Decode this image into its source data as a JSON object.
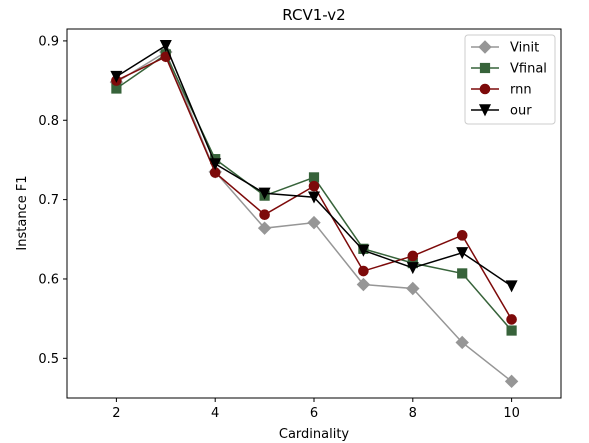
{
  "chart_data": {
    "type": "line",
    "title": "RCV1-v2",
    "xlabel": "Cardinality",
    "ylabel": "Instance F1",
    "xlim": [
      1,
      11
    ],
    "ylim": [
      0.45,
      0.915
    ],
    "xticks": [
      2,
      4,
      6,
      8,
      10
    ],
    "yticks": [
      0.5,
      0.6,
      0.7,
      0.8,
      0.9
    ],
    "x": [
      2,
      3,
      4,
      5,
      6,
      7,
      8,
      9,
      10
    ],
    "grid": false,
    "legend_position": "top-right",
    "series": [
      {
        "name": "Vinit",
        "color": "#969696",
        "marker": "diamond",
        "values": [
          0.848,
          0.886,
          0.735,
          0.664,
          0.671,
          0.593,
          0.588,
          0.52,
          0.471
        ]
      },
      {
        "name": "Vfinal",
        "color": "#37633a",
        "marker": "square",
        "values": [
          0.84,
          0.883,
          0.751,
          0.705,
          0.728,
          0.638,
          0.62,
          0.607,
          0.535
        ]
      },
      {
        "name": "rnn",
        "color": "#7d0a0a",
        "marker": "circle",
        "values": [
          0.85,
          0.88,
          0.734,
          0.681,
          0.717,
          0.61,
          0.629,
          0.655,
          0.549
        ]
      },
      {
        "name": "our",
        "color": "#000000",
        "marker": "triangle-down",
        "values": [
          0.855,
          0.894,
          0.745,
          0.708,
          0.703,
          0.636,
          0.614,
          0.633,
          0.591
        ]
      }
    ]
  }
}
